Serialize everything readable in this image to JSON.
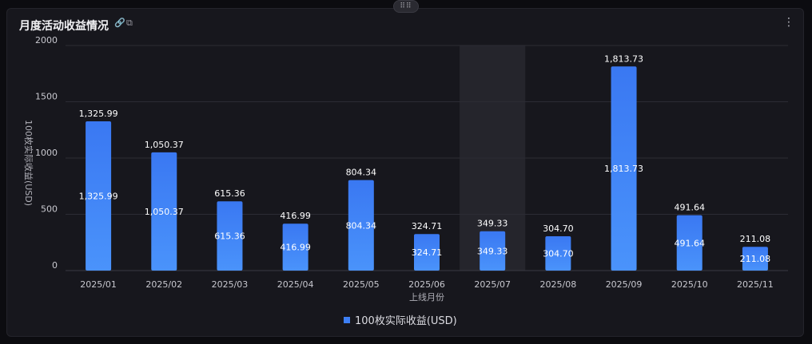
{
  "header": {
    "title": "月度活动收益情况",
    "icons": [
      "link-icon",
      "copy-icon"
    ],
    "menu_icon": "more-vertical-icon",
    "handle_glyph": "⠿⠿"
  },
  "chart_data": {
    "type": "bar",
    "categories": [
      "2025/01",
      "2025/02",
      "2025/03",
      "2025/04",
      "2025/05",
      "2025/06",
      "2025/07",
      "2025/08",
      "2025/09",
      "2025/10",
      "2025/11"
    ],
    "series": [
      {
        "name": "100枚实际收益(USD)",
        "values": [
          1325.99,
          1050.37,
          615.36,
          416.99,
          804.34,
          324.71,
          349.33,
          304.7,
          1813.73,
          491.64,
          211.08
        ],
        "labels": [
          "1,325.99",
          "1,050.37",
          "615.36",
          "416.99",
          "804.34",
          "324.71",
          "349.33",
          "304.70",
          "1,813.73",
          "491.64",
          "211.08"
        ]
      }
    ],
    "xlabel": "上线月份",
    "ylabel": "100枚实际收益(USD)",
    "ylim": [
      0,
      2000
    ],
    "yticks": [
      0,
      500,
      1000,
      1500,
      2000
    ],
    "ytick_labels": [
      "0",
      "500",
      "1000",
      "1500",
      "2000"
    ],
    "highlighted_category": "2025/07",
    "grid": true,
    "legend_position": "bottom-center",
    "colors": {
      "bar_top": "#3a78f2",
      "bar_bottom": "#4a93fb",
      "grid": "#2c2c34",
      "hover_band": "#25252c"
    }
  }
}
